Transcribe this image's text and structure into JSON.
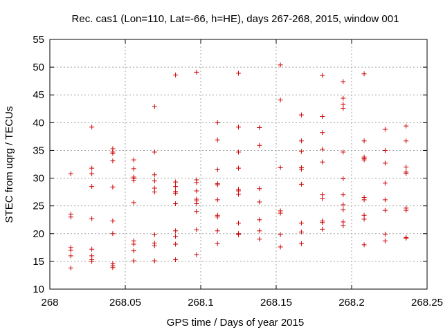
{
  "chart_data": {
    "type": "scatter",
    "title": "Rec. cas1 (Lon=110, Lat=-66, h=HE), days 267-268, 2015, window 001",
    "xlabel": "GPS time / Days of year 2015",
    "ylabel": "STEC from uqrg / TECUs",
    "xlim": [
      268,
      268.25
    ],
    "ylim": [
      10,
      55
    ],
    "x_ticks": [
      268,
      268.05,
      268.1,
      268.15,
      268.2,
      268.25
    ],
    "x_tick_labels": [
      "268",
      "268.05",
      "268.1",
      "268.15",
      "268.2",
      "268.25"
    ],
    "y_ticks": [
      10,
      15,
      20,
      25,
      30,
      35,
      40,
      45,
      50,
      55
    ],
    "y_tick_labels": [
      "10",
      "15",
      "20",
      "25",
      "30",
      "35",
      "40",
      "45",
      "50",
      "55"
    ],
    "grid": true,
    "marker": "plus",
    "color": "#cc0000",
    "series": [
      {
        "points": [
          [
            268.0139,
            30.8
          ],
          [
            268.0139,
            23.5
          ],
          [
            268.0139,
            23.0
          ],
          [
            268.0139,
            17.5
          ],
          [
            268.0139,
            17.0
          ],
          [
            268.0139,
            16.0
          ],
          [
            268.0139,
            13.8
          ],
          [
            268.0278,
            39.2
          ],
          [
            268.0278,
            31.8
          ],
          [
            268.0278,
            30.8
          ],
          [
            268.0278,
            28.5
          ],
          [
            268.0278,
            22.7
          ],
          [
            268.0278,
            17.2
          ],
          [
            268.0278,
            16.0
          ],
          [
            268.0278,
            15.3
          ],
          [
            268.0278,
            15.0
          ],
          [
            268.0417,
            35.3
          ],
          [
            268.0417,
            34.7
          ],
          [
            268.0417,
            34.5
          ],
          [
            268.0417,
            33.1
          ],
          [
            268.0417,
            28.4
          ],
          [
            268.0417,
            22.3
          ],
          [
            268.0417,
            20.0
          ],
          [
            268.0417,
            14.6
          ],
          [
            268.0417,
            14.2
          ],
          [
            268.0417,
            13.9
          ],
          [
            268.0556,
            33.3
          ],
          [
            268.0556,
            31.7
          ],
          [
            268.0556,
            30.2
          ],
          [
            268.0556,
            29.9
          ],
          [
            268.0556,
            29.6
          ],
          [
            268.0556,
            25.6
          ],
          [
            268.0556,
            18.7
          ],
          [
            268.0556,
            18.1
          ],
          [
            268.0556,
            16.9
          ],
          [
            268.0556,
            15.1
          ],
          [
            268.0694,
            42.9
          ],
          [
            268.0694,
            34.7
          ],
          [
            268.0694,
            30.6
          ],
          [
            268.0694,
            29.5
          ],
          [
            268.0694,
            28.2
          ],
          [
            268.0694,
            27.5
          ],
          [
            268.0694,
            19.8
          ],
          [
            268.0694,
            18.3
          ],
          [
            268.0694,
            17.8
          ],
          [
            268.0694,
            15.1
          ],
          [
            268.0833,
            48.6
          ],
          [
            268.0833,
            29.3
          ],
          [
            268.0833,
            28.5
          ],
          [
            268.0833,
            27.6
          ],
          [
            268.0833,
            27.3
          ],
          [
            268.0833,
            25.4
          ],
          [
            268.0833,
            20.5
          ],
          [
            268.0833,
            19.5
          ],
          [
            268.0833,
            18.1
          ],
          [
            268.0833,
            15.3
          ],
          [
            268.0972,
            49.1
          ],
          [
            268.0972,
            29.7
          ],
          [
            268.0972,
            29.2
          ],
          [
            268.0972,
            27.7
          ],
          [
            268.0972,
            26.2
          ],
          [
            268.0972,
            25.9
          ],
          [
            268.0972,
            25.4
          ],
          [
            268.0972,
            24.0
          ],
          [
            268.0972,
            20.7
          ],
          [
            268.0972,
            16.2
          ],
          [
            268.1111,
            40.0
          ],
          [
            268.1111,
            36.9
          ],
          [
            268.1111,
            31.5
          ],
          [
            268.1111,
            29.0
          ],
          [
            268.1111,
            28.8
          ],
          [
            268.1111,
            26.1
          ],
          [
            268.1111,
            23.3
          ],
          [
            268.1111,
            23.0
          ],
          [
            268.1111,
            20.5
          ],
          [
            268.1111,
            18.2
          ],
          [
            268.125,
            48.9
          ],
          [
            268.125,
            39.2
          ],
          [
            268.125,
            34.7
          ],
          [
            268.125,
            31.8
          ],
          [
            268.125,
            28.0
          ],
          [
            268.125,
            27.7
          ],
          [
            268.125,
            27.1
          ],
          [
            268.125,
            21.9
          ],
          [
            268.125,
            20.0
          ],
          [
            268.125,
            19.8
          ],
          [
            268.1389,
            39.1
          ],
          [
            268.1389,
            35.9
          ],
          [
            268.1389,
            28.1
          ],
          [
            268.1389,
            25.7
          ],
          [
            268.1389,
            22.5
          ],
          [
            268.1389,
            20.5
          ],
          [
            268.1389,
            19.0
          ],
          [
            268.1528,
            50.4
          ],
          [
            268.1528,
            44.1
          ],
          [
            268.1528,
            31.9
          ],
          [
            268.1528,
            24.1
          ],
          [
            268.1528,
            23.7
          ],
          [
            268.1528,
            19.8
          ],
          [
            268.1528,
            17.6
          ],
          [
            268.1667,
            41.4
          ],
          [
            268.1667,
            36.7
          ],
          [
            268.1667,
            34.8
          ],
          [
            268.1667,
            31.9
          ],
          [
            268.1667,
            31.6
          ],
          [
            268.1667,
            28.9
          ],
          [
            268.1667,
            21.9
          ],
          [
            268.1667,
            20.3
          ],
          [
            268.1667,
            18.2
          ],
          [
            268.1806,
            48.5
          ],
          [
            268.1806,
            41.1
          ],
          [
            268.1806,
            38.2
          ],
          [
            268.1806,
            35.2
          ],
          [
            268.1806,
            32.9
          ],
          [
            268.1806,
            27.0
          ],
          [
            268.1806,
            26.3
          ],
          [
            268.1806,
            22.3
          ],
          [
            268.1806,
            22.0
          ],
          [
            268.1806,
            20.8
          ],
          [
            268.1944,
            47.4
          ],
          [
            268.1944,
            44.4
          ],
          [
            268.1944,
            43.3
          ],
          [
            268.1944,
            42.6
          ],
          [
            268.1944,
            34.7
          ],
          [
            268.1944,
            29.9
          ],
          [
            268.1944,
            27.0
          ],
          [
            268.1944,
            25.2
          ],
          [
            268.1944,
            24.3
          ],
          [
            268.1944,
            22.1
          ],
          [
            268.1944,
            21.4
          ],
          [
            268.2083,
            48.8
          ],
          [
            268.2083,
            36.7
          ],
          [
            268.2083,
            33.8
          ],
          [
            268.2083,
            33.5
          ],
          [
            268.2083,
            33.3
          ],
          [
            268.2083,
            26.5
          ],
          [
            268.2083,
            26.1
          ],
          [
            268.2083,
            23.3
          ],
          [
            268.2083,
            22.6
          ],
          [
            268.2083,
            18.0
          ],
          [
            268.2222,
            38.8
          ],
          [
            268.2222,
            35.0
          ],
          [
            268.2222,
            32.7
          ],
          [
            268.2222,
            29.1
          ],
          [
            268.2222,
            26.1
          ],
          [
            268.2222,
            24.2
          ],
          [
            268.2222,
            19.9
          ],
          [
            268.2222,
            18.7
          ],
          [
            268.2361,
            39.4
          ],
          [
            268.2361,
            36.7
          ],
          [
            268.2361,
            32.0
          ],
          [
            268.2361,
            31.1
          ],
          [
            268.2361,
            30.9
          ],
          [
            268.2361,
            24.6
          ],
          [
            268.2361,
            24.2
          ],
          [
            268.2361,
            19.3
          ],
          [
            268.2361,
            19.2
          ]
        ]
      }
    ]
  }
}
